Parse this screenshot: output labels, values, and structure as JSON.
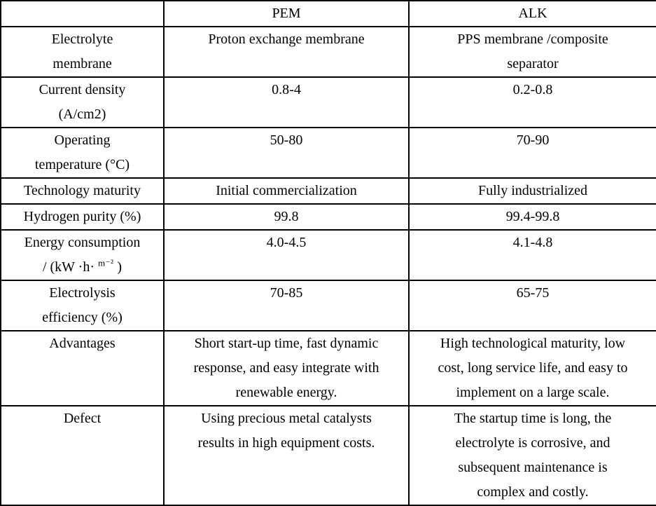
{
  "colors": {
    "border": "#000000",
    "text": "#000000",
    "background": "#ffffff"
  },
  "table": {
    "header": {
      "col1": "",
      "col2": "PEM",
      "col3": "ALK"
    },
    "rows": [
      {
        "label": [
          "Electrolyte",
          "membrane"
        ],
        "pem": [
          "Proton exchange membrane"
        ],
        "alk": [
          "PPS membrane /composite",
          "separator"
        ]
      },
      {
        "label": [
          "Current density",
          "(A/cm2)"
        ],
        "pem": [
          "0.8-4"
        ],
        "alk": [
          "0.2-0.8"
        ]
      },
      {
        "label": [
          "Operating",
          "temperature (°C)"
        ],
        "pem": [
          "50-80"
        ],
        "alk": [
          "70-90"
        ]
      },
      {
        "label": [
          "Technology maturity"
        ],
        "pem": [
          "Initial commercialization"
        ],
        "alk": [
          "Fully industrialized"
        ]
      },
      {
        "label": [
          "Hydrogen purity (%)"
        ],
        "pem": [
          "99.8"
        ],
        "alk": [
          "99.4-99.8"
        ]
      },
      {
        "label": [
          "Energy consumption",
          {
            "pre": "/ (kW ·h· ",
            "sup": "m⁻²",
            "post": " )"
          }
        ],
        "pem": [
          "4.0-4.5"
        ],
        "alk": [
          "4.1-4.8"
        ]
      },
      {
        "label": [
          "Electrolysis",
          "efficiency (%)"
        ],
        "pem": [
          "70-85"
        ],
        "alk": [
          "65-75"
        ]
      },
      {
        "label": [
          "Advantages"
        ],
        "pem": [
          "Short start-up time, fast dynamic",
          "response, and easy integrate with",
          "renewable energy."
        ],
        "alk": [
          "High technological maturity, low",
          "cost, long service life, and easy to",
          "implement on a large scale."
        ]
      },
      {
        "label": [
          "Defect"
        ],
        "pem": [
          "Using precious metal catalysts",
          "results in high equipment costs."
        ],
        "alk": [
          "The startup time is long, the",
          "electrolyte is corrosive, and",
          "subsequent maintenance is",
          "complex and costly."
        ]
      }
    ]
  }
}
